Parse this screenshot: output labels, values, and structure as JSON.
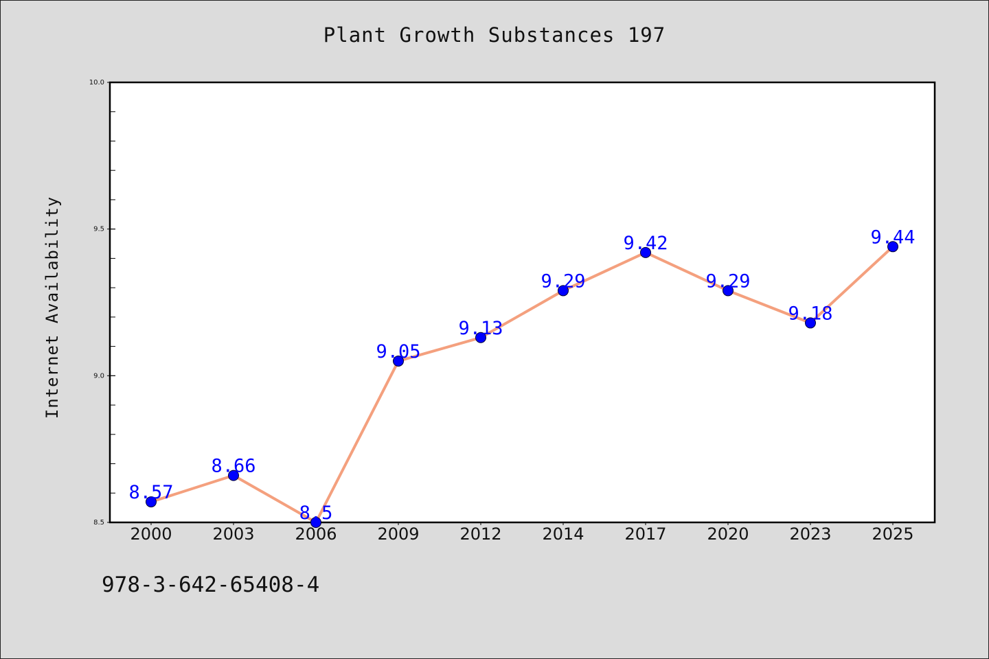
{
  "chart_data": {
    "type": "line",
    "title": "Plant Growth Substances 197",
    "xlabel": "",
    "ylabel": "Internet Availability",
    "categories": [
      "2000",
      "2003",
      "2006",
      "2009",
      "2012",
      "2014",
      "2017",
      "2020",
      "2023",
      "2025"
    ],
    "series": [
      {
        "values": [
          8.57,
          8.66,
          8.5,
          9.05,
          9.13,
          9.29,
          9.42,
          9.29,
          9.18,
          9.44
        ],
        "labels": [
          "8.57",
          "8.66",
          "8.5",
          "9.05",
          "9.13",
          "9.29",
          "9.42",
          "9.29",
          "9.18",
          "9.44"
        ]
      }
    ],
    "ylim": [
      8.5,
      10.0
    ],
    "yticks": [
      "8.5",
      "9.0",
      "9.5",
      "10.0"
    ],
    "grid": false,
    "colors": {
      "line": "#f4a07e",
      "marker": "#0000ff",
      "label": "#0000ff",
      "background": "#dcdcdc",
      "plot_background": "#ffffff"
    }
  },
  "footer": {
    "isbn": "978-3-642-65408-4"
  }
}
